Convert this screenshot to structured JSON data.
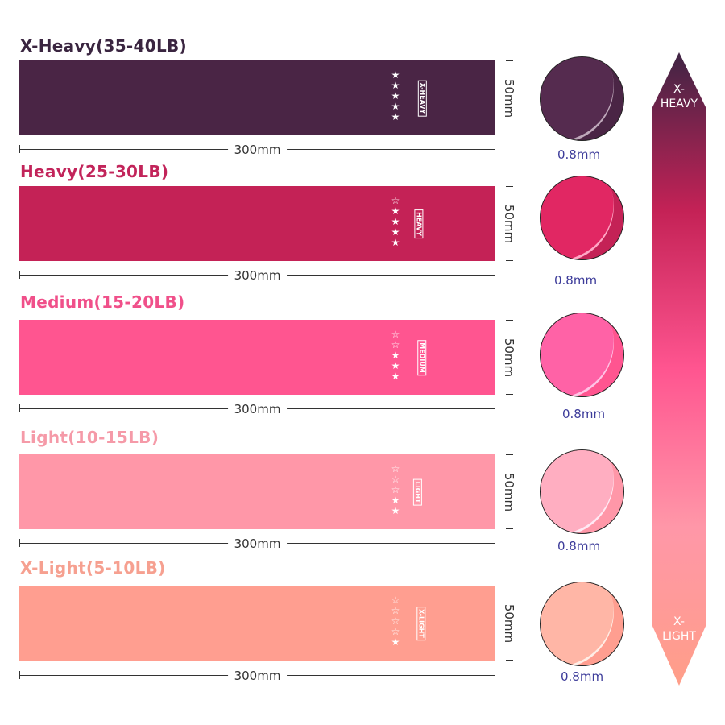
{
  "bands": [
    {
      "title": "X-Heavy(35-40LB)",
      "tag": "X-HEAVY",
      "stars_filled": 5,
      "stars_total": 5,
      "length": "300mm",
      "width": "50mm",
      "thickness": "0.8mm",
      "color": "#4a2545",
      "title_color": "#3a2540"
    },
    {
      "title": "Heavy(25-30LB)",
      "tag": "HEAVY",
      "stars_filled": 4,
      "stars_total": 5,
      "length": "300mm",
      "width": "50mm",
      "thickness": "0.8mm",
      "color": "#c42256",
      "title_color": "#c2245a"
    },
    {
      "title": "Medium(15-20LB)",
      "tag": "MEDIUM",
      "stars_filled": 3,
      "stars_total": 5,
      "length": "300mm",
      "width": "50mm",
      "thickness": "0.8mm",
      "color": "#ff5590",
      "title_color": "#f0508a"
    },
    {
      "title": "Light(10-15LB)",
      "tag": "LIGHT",
      "stars_filled": 2,
      "stars_total": 5,
      "length": "300mm",
      "width": "50mm",
      "thickness": "0.8mm",
      "color": "#ff97a8",
      "title_color": "#f59aa8"
    },
    {
      "title": "X-Light(5-10LB)",
      "tag": "X-LIGHT",
      "stars_filled": 1,
      "stars_total": 5,
      "length": "300mm",
      "width": "50mm",
      "thickness": "0.8mm",
      "color": "#ff9e90",
      "title_color": "#f6a090"
    }
  ],
  "scale": {
    "top_label": "X-\nHEAVY",
    "bottom_label": "X-\nLIGHT"
  }
}
